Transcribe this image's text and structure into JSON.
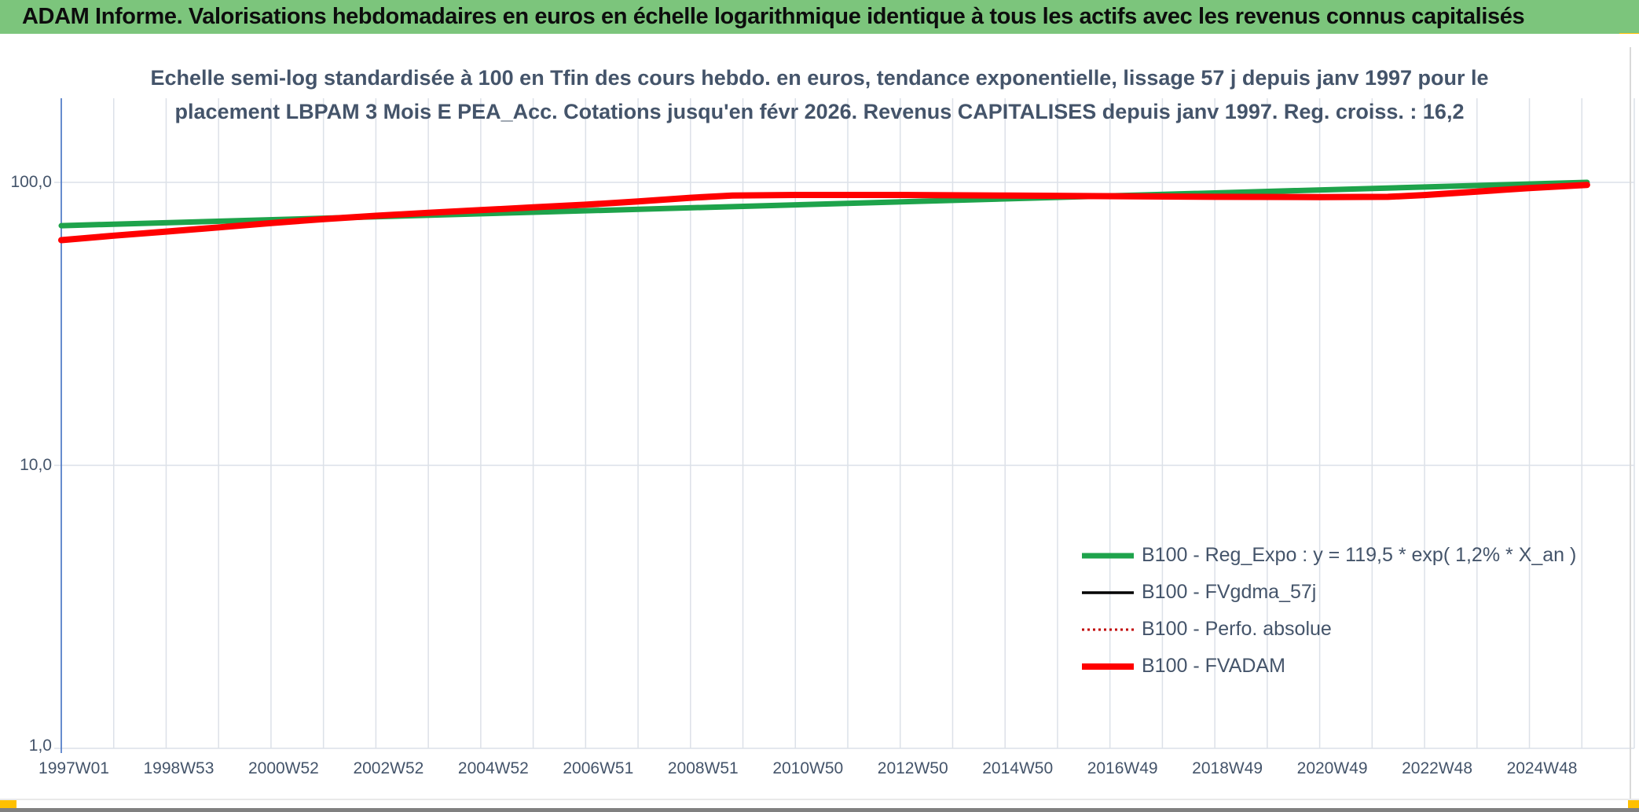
{
  "header": {
    "title": "ADAM Informe. Valorisations hebdomadaires en euros en échelle logarithmique identique à tous les actifs avec les revenus connus capitalisés"
  },
  "title": {
    "line1": "Echelle semi-log standardisée à 100 en Tfin des cours hebdo. en euros, tendance exponentielle, lissage 57 j depuis janv 1997 pour le",
    "line2": "placement LBPAM 3 Mois E PEA_Acc. Cotations jusqu'en févr 2026. Revenus CAPITALISES depuis janv 1997. Reg. croiss. : 16,2"
  },
  "axes": {
    "y_tick_labels": [
      "100,0",
      "10,0",
      "1,0"
    ],
    "x_tick_labels": [
      "1997W01",
      "1998W53",
      "2000W52",
      "2002W52",
      "2004W52",
      "2006W51",
      "2008W51",
      "2010W50",
      "2012W50",
      "2014W50",
      "2016W49",
      "2018W49",
      "2020W49",
      "2022W48",
      "2024W48"
    ]
  },
  "colors": {
    "header_bg": "#7CC57C",
    "accent_yellow": "#FFC000",
    "text_dark": "#44546A",
    "grid": "#DCE1E8",
    "axis_blue": "#4472C4",
    "green": "#1EA34B",
    "red": "#FF0000",
    "dark_red": "#C00000",
    "black": "#000000",
    "footer_gray": "#808080"
  },
  "chart_data": {
    "type": "line",
    "title": "Echelle semi-log standardisée à 100 en Tfin des cours hebdo. en euros, tendance exponentielle, lissage 57 j depuis janv 1997 pour le placement LBPAM 3 Mois E PEA_Acc. Cotations jusqu'en févr 2026. Revenus CAPITALISES depuis janv 1997. Reg. croiss. : 16,2",
    "y_axis": {
      "scale": "log",
      "ticks": [
        100,
        10,
        1
      ],
      "range": [
        1,
        198
      ],
      "decimal": "comma"
    },
    "x_axis": {
      "unit": "years since 1997W01",
      "range": [
        0,
        30
      ],
      "labels": [
        "1997W01",
        "1998W53",
        "2000W52",
        "2002W52",
        "2004W52",
        "2006W51",
        "2008W51",
        "2010W50",
        "2012W50",
        "2014W50",
        "2016W49",
        "2018W49",
        "2020W49",
        "2022W48",
        "2024W48"
      ],
      "label_positions_years": [
        0,
        2,
        4,
        6,
        8,
        10,
        12,
        14,
        16,
        18,
        20,
        22,
        24,
        26,
        28
      ]
    },
    "legend_position": "inside-right",
    "grid": true,
    "series": [
      {
        "name": "B100 - Reg_Expo : y = 119,5 * exp( 1,2% *  X_an )",
        "color": "#1EA34B",
        "width": 7,
        "dash": null,
        "points": [
          [
            0,
            70.3
          ],
          [
            29.1,
            100.0
          ]
        ]
      },
      {
        "name": "B100 - FVgdma_57j",
        "color": "#000000",
        "width": 3.5,
        "dash": null,
        "points": [
          [
            0,
            62.5
          ],
          [
            1,
            64.8
          ],
          [
            2,
            67.0
          ],
          [
            3,
            69.3
          ],
          [
            4,
            71.8
          ],
          [
            5,
            74.2
          ],
          [
            6,
            76.2
          ],
          [
            7,
            78.0
          ],
          [
            8,
            79.8
          ],
          [
            9,
            81.6
          ],
          [
            10,
            83.4
          ],
          [
            11,
            85.6
          ],
          [
            12,
            88.2
          ],
          [
            12.8,
            89.8
          ],
          [
            14,
            90.3
          ],
          [
            16,
            90.3
          ],
          [
            18,
            89.8
          ],
          [
            19.8,
            89.4
          ],
          [
            22,
            88.9
          ],
          [
            24,
            88.7
          ],
          [
            25.3,
            88.9
          ],
          [
            26,
            90.2
          ],
          [
            27,
            92.8
          ],
          [
            28,
            95.5
          ],
          [
            29.1,
            98.0
          ]
        ]
      },
      {
        "name": "B100 - Perfo. absolue",
        "color": "#C00000",
        "width": 2.5,
        "dash": "3 4",
        "points": [
          [
            0,
            62.5
          ],
          [
            1,
            64.8
          ],
          [
            2,
            67.0
          ],
          [
            3,
            69.3
          ],
          [
            4,
            71.8
          ],
          [
            5,
            74.2
          ],
          [
            6,
            76.2
          ],
          [
            7,
            78.0
          ],
          [
            8,
            79.8
          ],
          [
            9,
            81.6
          ],
          [
            10,
            83.4
          ],
          [
            11,
            85.6
          ],
          [
            12,
            88.2
          ],
          [
            12.8,
            89.8
          ],
          [
            14,
            90.3
          ],
          [
            16,
            90.3
          ],
          [
            18,
            89.8
          ],
          [
            19.8,
            89.4
          ],
          [
            22,
            88.9
          ],
          [
            24,
            88.7
          ],
          [
            25.3,
            88.9
          ],
          [
            26,
            90.2
          ],
          [
            27,
            92.8
          ],
          [
            28,
            95.5
          ],
          [
            29.1,
            98.0
          ]
        ]
      },
      {
        "name": "B100 - FVADAM",
        "color": "#FF0000",
        "width": 8,
        "dash": null,
        "points": [
          [
            0,
            62.5
          ],
          [
            1,
            64.8
          ],
          [
            2,
            67.0
          ],
          [
            3,
            69.3
          ],
          [
            4,
            71.8
          ],
          [
            5,
            74.2
          ],
          [
            6,
            76.2
          ],
          [
            7,
            78.0
          ],
          [
            8,
            79.8
          ],
          [
            9,
            81.6
          ],
          [
            10,
            83.4
          ],
          [
            11,
            85.6
          ],
          [
            12,
            88.2
          ],
          [
            12.8,
            89.8
          ],
          [
            14,
            90.3
          ],
          [
            16,
            90.3
          ],
          [
            18,
            89.8
          ],
          [
            19.8,
            89.4
          ],
          [
            22,
            88.9
          ],
          [
            24,
            88.7
          ],
          [
            25.3,
            88.9
          ],
          [
            26,
            90.2
          ],
          [
            27,
            92.8
          ],
          [
            28,
            95.5
          ],
          [
            29.1,
            98.0
          ]
        ]
      }
    ]
  }
}
